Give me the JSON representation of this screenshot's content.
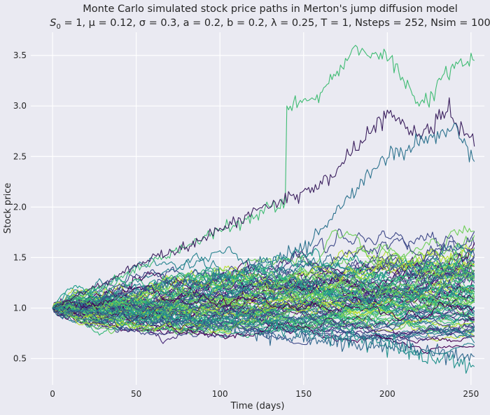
{
  "chart_data": {
    "type": "line",
    "title": "Monte Carlo simulated stock price paths in Merton's jump diffusion model",
    "subtitle": {
      "pre_sub": "S",
      "sub": "0",
      "rest": " = 1, μ = 0.12, σ = 0.3, a = 0.2, b = 0.2, λ = 0.25, T = 1, Nsteps = 252, Nsim = 100"
    },
    "xlabel": "Time (days)",
    "ylabel": "Stock price",
    "xlim": [
      -13,
      258
    ],
    "ylim": [
      0.24,
      3.73
    ],
    "xticks": [
      0,
      50,
      100,
      150,
      200,
      250
    ],
    "yticks": [
      0.5,
      1.0,
      1.5,
      2.0,
      2.5,
      3.0,
      3.5
    ],
    "ytick_labels": [
      "0.5",
      "1.0",
      "1.5",
      "2.0",
      "2.5",
      "3.0",
      "3.5"
    ],
    "grid": true,
    "background": "#eaeaf2",
    "colormap": "viridis",
    "simulation": {
      "S0": 1,
      "mu": 0.12,
      "sigma": 0.3,
      "a": 0.2,
      "b": 0.2,
      "lambda": 0.25,
      "T": 1,
      "nsteps": 252,
      "nsim": 100
    },
    "highlighted_paths": [
      {
        "x": [
          0,
          139,
          140,
          160,
          180,
          200,
          220,
          240,
          252
        ],
        "y": [
          1.0,
          2.05,
          2.97,
          3.1,
          3.55,
          3.5,
          3.0,
          3.4,
          3.45
        ],
        "color": "#3fbc73"
      },
      {
        "x": [
          0,
          60,
          80,
          120,
          160,
          190,
          200,
          220,
          236,
          252
        ],
        "y": [
          1.0,
          1.5,
          1.6,
          1.95,
          2.2,
          2.75,
          2.95,
          2.7,
          2.97,
          2.6
        ],
        "color": "#3b1f5e"
      },
      {
        "x": [
          0,
          100,
          150,
          200,
          240,
          252
        ],
        "y": [
          1.0,
          1.3,
          1.6,
          2.5,
          2.8,
          2.45
        ],
        "color": "#2c728e"
      },
      {
        "x": [
          0,
          100,
          160,
          220,
          252
        ],
        "y": [
          1.0,
          0.9,
          0.75,
          0.55,
          0.42
        ],
        "color": "#21918c"
      },
      {
        "x": [
          0,
          80,
          150,
          210,
          252
        ],
        "y": [
          1.0,
          0.85,
          0.7,
          0.6,
          0.52
        ],
        "color": "#31688e"
      }
    ]
  }
}
